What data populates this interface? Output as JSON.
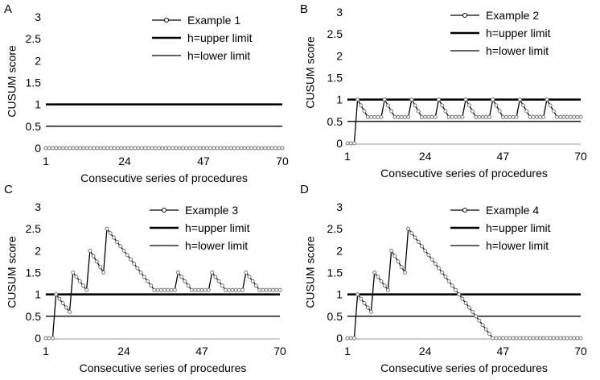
{
  "chart_data": [
    {
      "panel_label": "A",
      "type": "line",
      "ylabel": "CUSUM score",
      "xlabel": "Consecutive series of procedures",
      "x_ticks": [
        1,
        24,
        47,
        70
      ],
      "y_ticks": [
        "0",
        "0.5",
        "1",
        "1.5",
        "2",
        "2.5",
        "3"
      ],
      "xlim": [
        1,
        70
      ],
      "ylim": [
        0,
        3
      ],
      "legend_position": "top-right",
      "series": [
        {
          "name": "Example 1",
          "points": [
            [
              1,
              0
            ],
            [
              70,
              0
            ]
          ]
        }
      ],
      "upper_limit": {
        "name": "h=upper limit",
        "value": 1
      },
      "lower_limit": {
        "name": "h=lower limit",
        "value": 0.5
      }
    },
    {
      "panel_label": "B",
      "type": "line",
      "ylabel": "CUSUM score",
      "xlabel": "Consecutive series of procedures",
      "x_ticks": [
        1,
        24,
        47,
        70
      ],
      "y_ticks": [
        "0",
        "0.5",
        "1",
        "1.5",
        "2",
        "2.5",
        "3"
      ],
      "xlim": [
        1,
        70
      ],
      "ylim": [
        0,
        3
      ],
      "legend_position": "top-right",
      "series": [
        {
          "name": "Example 2",
          "points": [
            [
              1,
              0
            ],
            [
              3,
              0
            ],
            [
              4,
              1
            ],
            [
              7,
              0.6
            ],
            [
              11,
              0.6
            ],
            [
              12,
              1
            ],
            [
              15,
              0.6
            ],
            [
              19,
              0.6
            ],
            [
              20,
              1
            ],
            [
              23,
              0.6
            ],
            [
              27,
              0.6
            ],
            [
              28,
              1
            ],
            [
              31,
              0.6
            ],
            [
              35,
              0.6
            ],
            [
              36,
              1
            ],
            [
              39,
              0.6
            ],
            [
              43,
              0.6
            ],
            [
              44,
              1
            ],
            [
              47,
              0.6
            ],
            [
              51,
              0.6
            ],
            [
              52,
              1
            ],
            [
              55,
              0.6
            ],
            [
              59,
              0.6
            ],
            [
              60,
              1
            ],
            [
              63,
              0.6
            ],
            [
              70,
              0.6
            ]
          ]
        }
      ],
      "upper_limit": {
        "name": "h=upper limit",
        "value": 1
      },
      "lower_limit": {
        "name": "h=lower limit",
        "value": 0.5
      }
    },
    {
      "panel_label": "C",
      "type": "line",
      "ylabel": "CUSUM score",
      "xlabel": "Consecutive series of procedures",
      "x_ticks": [
        1,
        24,
        47,
        70
      ],
      "y_ticks": [
        "0",
        "0.5",
        "1",
        "1.5",
        "2",
        "2.5",
        "3"
      ],
      "xlim": [
        1,
        70
      ],
      "ylim": [
        0,
        3
      ],
      "legend_position": "top-right",
      "series": [
        {
          "name": "Example 3",
          "points": [
            [
              1,
              0
            ],
            [
              3,
              0
            ],
            [
              4,
              1
            ],
            [
              8,
              0.6
            ],
            [
              9,
              1.5
            ],
            [
              13,
              1.1
            ],
            [
              14,
              2
            ],
            [
              18,
              1.5
            ],
            [
              19,
              2.5
            ],
            [
              33,
              1.1
            ],
            [
              39,
              1.1
            ],
            [
              40,
              1.5
            ],
            [
              44,
              1.1
            ],
            [
              49,
              1.1
            ],
            [
              50,
              1.5
            ],
            [
              54,
              1.1
            ],
            [
              59,
              1.1
            ],
            [
              60,
              1.5
            ],
            [
              64,
              1.1
            ],
            [
              70,
              1.1
            ]
          ]
        }
      ],
      "upper_limit": {
        "name": "h=upper limit",
        "value": 1
      },
      "lower_limit": {
        "name": "h=lower limit",
        "value": 0.5
      }
    },
    {
      "panel_label": "D",
      "type": "line",
      "ylabel": "CUSUM score",
      "xlabel": "Consecutive series of procedures",
      "x_ticks": [
        1,
        24,
        47,
        70
      ],
      "y_ticks": [
        "0",
        "0.5",
        "1",
        "1.5",
        "2",
        "2.5",
        "3"
      ],
      "xlim": [
        1,
        70
      ],
      "ylim": [
        0,
        3
      ],
      "legend_position": "top-right",
      "series": [
        {
          "name": "Example 4",
          "points": [
            [
              1,
              0
            ],
            [
              3,
              0
            ],
            [
              4,
              1
            ],
            [
              8,
              0.6
            ],
            [
              9,
              1.5
            ],
            [
              13,
              1.1
            ],
            [
              14,
              2
            ],
            [
              18,
              1.5
            ],
            [
              19,
              2.5
            ],
            [
              44,
              0
            ],
            [
              70,
              0
            ]
          ]
        }
      ],
      "upper_limit": {
        "name": "h=upper limit",
        "value": 1
      },
      "lower_limit": {
        "name": "h=lower limit",
        "value": 0.5
      }
    }
  ]
}
